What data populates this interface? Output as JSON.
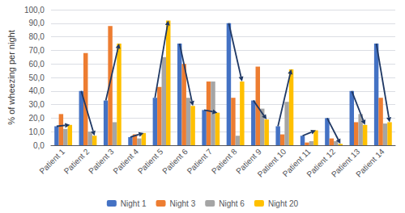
{
  "chart_data": {
    "type": "bar",
    "categories": [
      "Patient 1",
      "Patient 2",
      "Patient 3",
      "Patient 4",
      "Patient 5",
      "Patient 6",
      "Patient 7",
      "Patient 8",
      "Patient 9",
      "Patient 10",
      "Patient 11",
      "Patient 12",
      "Patient 13",
      "Patient 14"
    ],
    "series": [
      {
        "name": "Night 1",
        "color": "#4472C4",
        "values": [
          14,
          40,
          33,
          6,
          35,
          75,
          26,
          90,
          33,
          14,
          7,
          20,
          40,
          75
        ]
      },
      {
        "name": "Night 3",
        "color": "#ED7D31",
        "values": [
          23,
          68,
          88,
          8,
          43,
          60,
          47,
          35,
          58,
          8,
          2,
          5,
          17,
          35
        ]
      },
      {
        "name": "Night 6",
        "color": "#A5A5A5",
        "values": [
          12,
          10,
          17,
          5,
          65,
          35,
          47,
          7,
          27,
          32,
          3,
          3,
          23,
          16
        ]
      },
      {
        "name": "Night 20",
        "color": "#FFC000",
        "values": [
          15,
          7,
          75,
          9,
          92,
          29,
          24,
          47,
          19,
          56,
          11,
          1,
          15,
          17
        ]
      }
    ],
    "ylabel": "% of wheezing per night",
    "ylim": [
      0,
      100
    ],
    "yticks": [
      {
        "value": 0,
        "label": "0,0"
      },
      {
        "value": 10,
        "label": "10,0"
      },
      {
        "value": 20,
        "label": "20,0"
      },
      {
        "value": 30,
        "label": "30,0"
      },
      {
        "value": 40,
        "label": "40,0"
      },
      {
        "value": 50,
        "label": "50,0"
      },
      {
        "value": 60,
        "label": "60,0"
      },
      {
        "value": 70,
        "label": "70,0"
      },
      {
        "value": 80,
        "label": "80,0"
      },
      {
        "value": 90,
        "label": "90,0"
      },
      {
        "value": 100,
        "label": "100,0"
      }
    ],
    "grid": true,
    "legend": "bottom",
    "annotations": [
      {
        "type": "arrow",
        "from": "Night 1",
        "to": "Night 20",
        "color": "#1F3864"
      }
    ]
  }
}
